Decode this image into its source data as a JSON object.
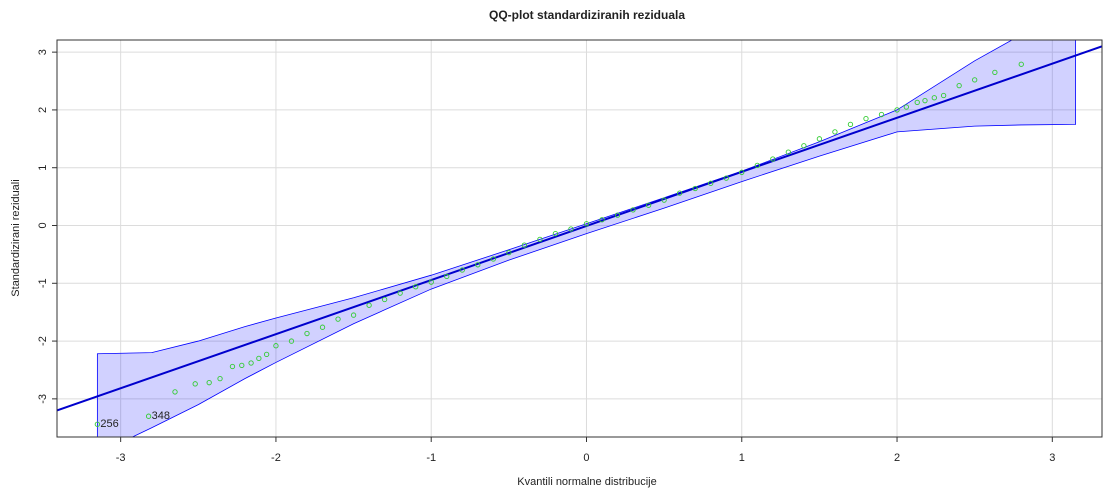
{
  "chart_data": {
    "type": "qqplot",
    "title": "QQ-plot standardiziranih reziduala",
    "x_label": "Kvantili normalne distribucije",
    "y_label": "Standardizirani reziduali",
    "xlim": [
      -3.41,
      3.32
    ],
    "ylim": [
      -3.66,
      3.21
    ],
    "xticks": [
      -3,
      -2,
      -1,
      0,
      1,
      2,
      3
    ],
    "yticks": [
      -3,
      -2,
      -1,
      0,
      1,
      2,
      3
    ],
    "grid": true,
    "band": {
      "color": "#0000ff",
      "x": [
        -3.15,
        -2.8,
        -2.5,
        -2.2,
        -2.0,
        -1.5,
        -1.0,
        -0.5,
        0,
        0.5,
        1.0,
        1.5,
        2.0,
        2.5,
        2.8,
        3.15
      ],
      "upper": [
        -2.22,
        -2.2,
        -2.0,
        -1.75,
        -1.6,
        -1.25,
        -0.86,
        -0.42,
        0.03,
        0.48,
        0.94,
        1.45,
        2.0,
        2.85,
        3.3,
        3.9
      ],
      "lower": [
        -3.95,
        -3.5,
        -3.1,
        -2.65,
        -2.37,
        -1.7,
        -1.1,
        -0.6,
        -0.14,
        0.3,
        0.76,
        1.2,
        1.62,
        1.72,
        1.74,
        1.75
      ]
    },
    "reference_line": {
      "color": "#0000cd",
      "x": [
        -3.41,
        3.32
      ],
      "y": [
        -3.2,
        3.1
      ]
    },
    "series": [
      {
        "color": "#33cc33",
        "x": [
          -3.15,
          -2.82,
          -2.65,
          -2.52,
          -2.43,
          -2.36,
          -2.28,
          -2.22,
          -2.16,
          -2.11,
          -2.06,
          -2.0,
          -1.9,
          -1.8,
          -1.7,
          -1.6,
          -1.5,
          -1.4,
          -1.3,
          -1.2,
          -1.1,
          -1.0,
          -0.9,
          -0.8,
          -0.7,
          -0.6,
          -0.5,
          -0.4,
          -0.3,
          -0.2,
          -0.1,
          0,
          0.1,
          0.2,
          0.3,
          0.4,
          0.5,
          0.6,
          0.7,
          0.8,
          0.9,
          1.0,
          1.1,
          1.2,
          1.3,
          1.4,
          1.5,
          1.6,
          1.7,
          1.8,
          1.9,
          2.0,
          2.06,
          2.13,
          2.18,
          2.24,
          2.3,
          2.4,
          2.5,
          2.63,
          2.8
        ],
        "values": [
          -3.44,
          -3.3,
          -2.88,
          -2.74,
          -2.72,
          -2.65,
          -2.44,
          -2.42,
          -2.38,
          -2.3,
          -2.23,
          -2.08,
          -2.0,
          -1.87,
          -1.76,
          -1.62,
          -1.55,
          -1.38,
          -1.28,
          -1.17,
          -1.06,
          -0.98,
          -0.88,
          -0.77,
          -0.68,
          -0.58,
          -0.47,
          -0.34,
          -0.24,
          -0.14,
          -0.06,
          0.03,
          0.1,
          0.18,
          0.27,
          0.35,
          0.44,
          0.56,
          0.64,
          0.73,
          0.82,
          0.92,
          1.04,
          1.15,
          1.27,
          1.38,
          1.5,
          1.62,
          1.75,
          1.85,
          1.92,
          2.0,
          2.05,
          2.13,
          2.16,
          2.21,
          2.25,
          2.42,
          2.52,
          2.65,
          2.79
        ],
        "labels": [
          "256",
          "348",
          null,
          null,
          null,
          null,
          null,
          null,
          null,
          null,
          null,
          null,
          null,
          null,
          null,
          null,
          null,
          null,
          null,
          null,
          null,
          null,
          null,
          null,
          null,
          null,
          null,
          null,
          null,
          null,
          null,
          null,
          null,
          null,
          null,
          null,
          null,
          null,
          null,
          null,
          null,
          null,
          null,
          null,
          null,
          null,
          null,
          null,
          null,
          null,
          null,
          null,
          null,
          null,
          null,
          null,
          null,
          null,
          null,
          null,
          null
        ]
      }
    ]
  }
}
